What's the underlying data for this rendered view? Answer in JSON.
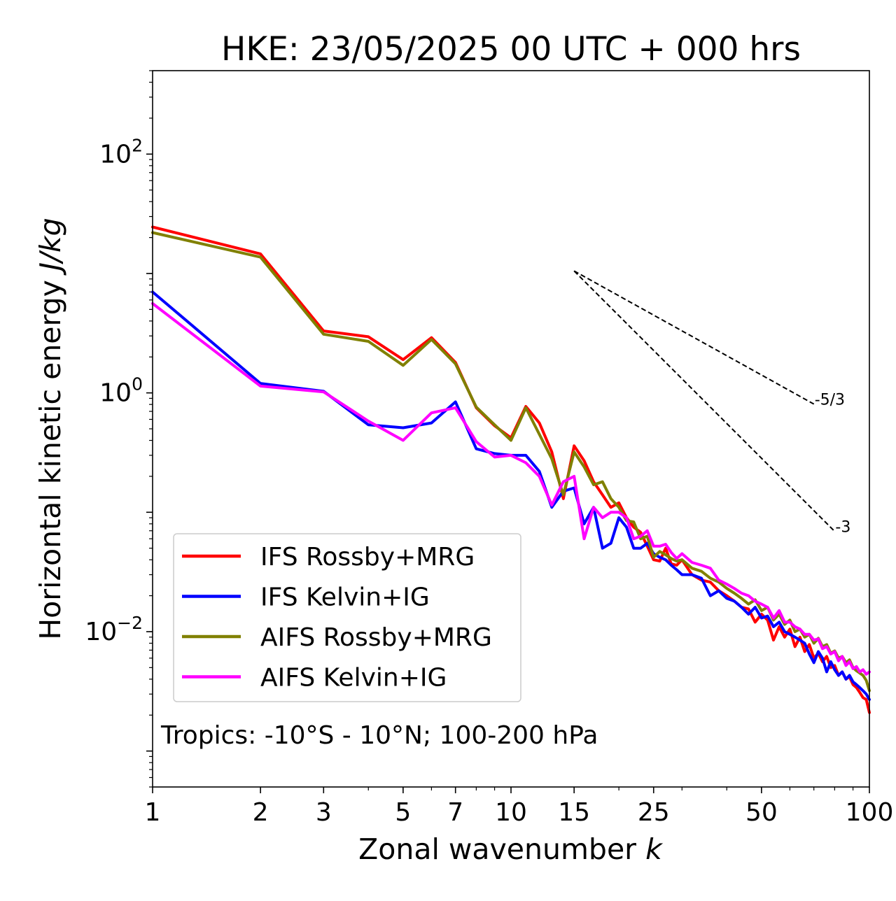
{
  "chart_data": {
    "type": "line",
    "title": "HKE: 23/05/2025 00 UTC + 000 hrs",
    "xlabel_main": "Zonal wavenumber ",
    "xlabel_var": "k",
    "ylabel_main": "Horizontal kinetic energy ",
    "ylabel_unit": "J/kg",
    "xscale": "log",
    "yscale": "log",
    "xlim": [
      1,
      100
    ],
    "ylim": [
      0.0005,
      500
    ],
    "x_ticks": [
      {
        "value": 1,
        "label": "1"
      },
      {
        "value": 2,
        "label": "2"
      },
      {
        "value": 3,
        "label": "3"
      },
      {
        "value": 5,
        "label": "5"
      },
      {
        "value": 7,
        "label": "7"
      },
      {
        "value": 10,
        "label": "10"
      },
      {
        "value": 15,
        "label": "15"
      },
      {
        "value": 25,
        "label": "25"
      },
      {
        "value": 50,
        "label": "50"
      },
      {
        "value": 100,
        "label": "100"
      }
    ],
    "y_ticks": [
      {
        "value": 100,
        "base": "10",
        "exp": "2"
      },
      {
        "value": 1,
        "base": "10",
        "exp": "0"
      },
      {
        "value": 0.01,
        "base": "10",
        "exp": "−2"
      }
    ],
    "legend_position": "lower-left",
    "annotation": "Tropics: -10°S - 10°N; 100-200 hPa",
    "reference_lines": [
      {
        "label": "-5/3",
        "slope": -1.6667,
        "x0": 15,
        "y0": 10.5,
        "x1": 70
      },
      {
        "label": "-3",
        "slope": -3,
        "x0": 15,
        "y0": 10.5,
        "x1": 80
      }
    ],
    "series": [
      {
        "name": "IFS Rossby+MRG",
        "color": "#ff0000",
        "x": [
          1,
          2,
          3,
          4,
          5,
          6,
          7,
          8,
          9,
          10,
          11,
          12,
          13,
          14,
          15,
          16,
          17,
          18,
          19,
          20,
          21,
          22,
          23,
          24,
          25,
          26,
          27,
          28,
          29,
          30,
          32,
          34,
          36,
          38,
          40,
          42,
          44,
          46,
          48,
          50,
          52,
          54,
          56,
          58,
          60,
          62,
          64,
          66,
          68,
          70,
          72,
          74,
          76,
          78,
          80,
          82,
          84,
          86,
          88,
          90,
          92,
          94,
          96,
          98,
          100
        ],
        "y": [
          24.5,
          14.6,
          3.3,
          2.95,
          1.9,
          2.9,
          1.8,
          0.75,
          0.53,
          0.42,
          0.77,
          0.56,
          0.32,
          0.13,
          0.36,
          0.27,
          0.18,
          0.14,
          0.11,
          0.12,
          0.09,
          0.075,
          0.068,
          0.052,
          0.04,
          0.039,
          0.05,
          0.037,
          0.036,
          0.04,
          0.03,
          0.027,
          0.026,
          0.022,
          0.02,
          0.018,
          0.016,
          0.0155,
          0.012,
          0.014,
          0.0125,
          0.0085,
          0.011,
          0.009,
          0.0105,
          0.0075,
          0.009,
          0.0068,
          0.0078,
          0.006,
          0.0066,
          0.0056,
          0.0062,
          0.005,
          0.0052,
          0.0043,
          0.0046,
          0.004,
          0.0042,
          0.0036,
          0.0034,
          0.0031,
          0.0028,
          0.0027,
          0.0021
        ]
      },
      {
        "name": "IFS Kelvin+IG",
        "color": "#0000ff",
        "x": [
          1,
          2,
          3,
          4,
          5,
          6,
          7,
          8,
          9,
          10,
          11,
          12,
          13,
          14,
          15,
          16,
          17,
          18,
          19,
          20,
          21,
          22,
          23,
          24,
          25,
          26,
          27,
          28,
          29,
          30,
          32,
          34,
          36,
          38,
          40,
          42,
          44,
          46,
          48,
          50,
          52,
          54,
          56,
          58,
          60,
          62,
          64,
          66,
          68,
          70,
          72,
          74,
          76,
          78,
          80,
          82,
          84,
          86,
          88,
          90,
          92,
          94,
          96,
          98,
          100
        ],
        "y": [
          7.0,
          1.2,
          1.03,
          0.54,
          0.51,
          0.56,
          0.84,
          0.34,
          0.31,
          0.3,
          0.3,
          0.22,
          0.11,
          0.15,
          0.16,
          0.08,
          0.11,
          0.05,
          0.055,
          0.09,
          0.075,
          0.05,
          0.05,
          0.055,
          0.045,
          0.042,
          0.04,
          0.036,
          0.033,
          0.03,
          0.03,
          0.028,
          0.02,
          0.022,
          0.019,
          0.018,
          0.016,
          0.014,
          0.016,
          0.013,
          0.0135,
          0.011,
          0.012,
          0.01,
          0.0095,
          0.009,
          0.0085,
          0.008,
          0.0065,
          0.0055,
          0.0068,
          0.006,
          0.0046,
          0.0056,
          0.0048,
          0.0043,
          0.0046,
          0.004,
          0.0043,
          0.0038,
          0.0036,
          0.0034,
          0.0032,
          0.003,
          0.0027
        ]
      },
      {
        "name": "AIFS Rossby+MRG",
        "color": "#808000",
        "x": [
          1,
          2,
          3,
          4,
          5,
          6,
          7,
          8,
          9,
          10,
          11,
          12,
          13,
          14,
          15,
          16,
          17,
          18,
          19,
          20,
          21,
          22,
          23,
          24,
          25,
          26,
          27,
          28,
          29,
          30,
          32,
          34,
          36,
          38,
          40,
          42,
          44,
          46,
          48,
          50,
          52,
          54,
          56,
          58,
          60,
          62,
          64,
          66,
          68,
          70,
          72,
          74,
          76,
          78,
          80,
          82,
          84,
          86,
          88,
          90,
          92,
          94,
          96,
          98,
          100
        ],
        "y": [
          22.0,
          13.7,
          3.1,
          2.7,
          1.7,
          2.8,
          1.75,
          0.76,
          0.54,
          0.4,
          0.75,
          0.45,
          0.28,
          0.14,
          0.32,
          0.24,
          0.17,
          0.18,
          0.13,
          0.11,
          0.085,
          0.083,
          0.06,
          0.063,
          0.042,
          0.047,
          0.044,
          0.041,
          0.039,
          0.04,
          0.034,
          0.032,
          0.028,
          0.026,
          0.023,
          0.021,
          0.019,
          0.017,
          0.0185,
          0.015,
          0.016,
          0.0125,
          0.014,
          0.0115,
          0.0125,
          0.01,
          0.0105,
          0.009,
          0.0095,
          0.008,
          0.0088,
          0.0075,
          0.0078,
          0.0066,
          0.0069,
          0.006,
          0.0062,
          0.0055,
          0.0058,
          0.005,
          0.0047,
          0.0045,
          0.0043,
          0.0039,
          0.0032
        ]
      },
      {
        "name": "AIFS Kelvin+IG",
        "color": "#ff00ff",
        "x": [
          1,
          2,
          3,
          4,
          5,
          6,
          7,
          8,
          9,
          10,
          11,
          12,
          13,
          14,
          15,
          16,
          17,
          18,
          19,
          20,
          21,
          22,
          23,
          24,
          25,
          26,
          27,
          28,
          29,
          30,
          32,
          34,
          36,
          38,
          40,
          42,
          44,
          46,
          48,
          50,
          52,
          54,
          56,
          58,
          60,
          62,
          64,
          66,
          68,
          70,
          72,
          74,
          76,
          78,
          80,
          82,
          84,
          86,
          88,
          90,
          92,
          94,
          96,
          98,
          100
        ],
        "y": [
          5.6,
          1.14,
          1.02,
          0.58,
          0.4,
          0.68,
          0.75,
          0.39,
          0.29,
          0.3,
          0.26,
          0.2,
          0.115,
          0.18,
          0.2,
          0.06,
          0.11,
          0.09,
          0.1,
          0.1,
          0.09,
          0.06,
          0.063,
          0.07,
          0.052,
          0.052,
          0.054,
          0.046,
          0.041,
          0.045,
          0.038,
          0.036,
          0.034,
          0.027,
          0.025,
          0.023,
          0.021,
          0.02,
          0.018,
          0.017,
          0.016,
          0.013,
          0.015,
          0.012,
          0.012,
          0.011,
          0.0105,
          0.0095,
          0.0095,
          0.0085,
          0.0087,
          0.0072,
          0.0075,
          0.0065,
          0.0068,
          0.0057,
          0.0062,
          0.0052,
          0.0056,
          0.0049,
          0.0051,
          0.0046,
          0.0048,
          0.0044,
          0.0046
        ]
      }
    ]
  }
}
